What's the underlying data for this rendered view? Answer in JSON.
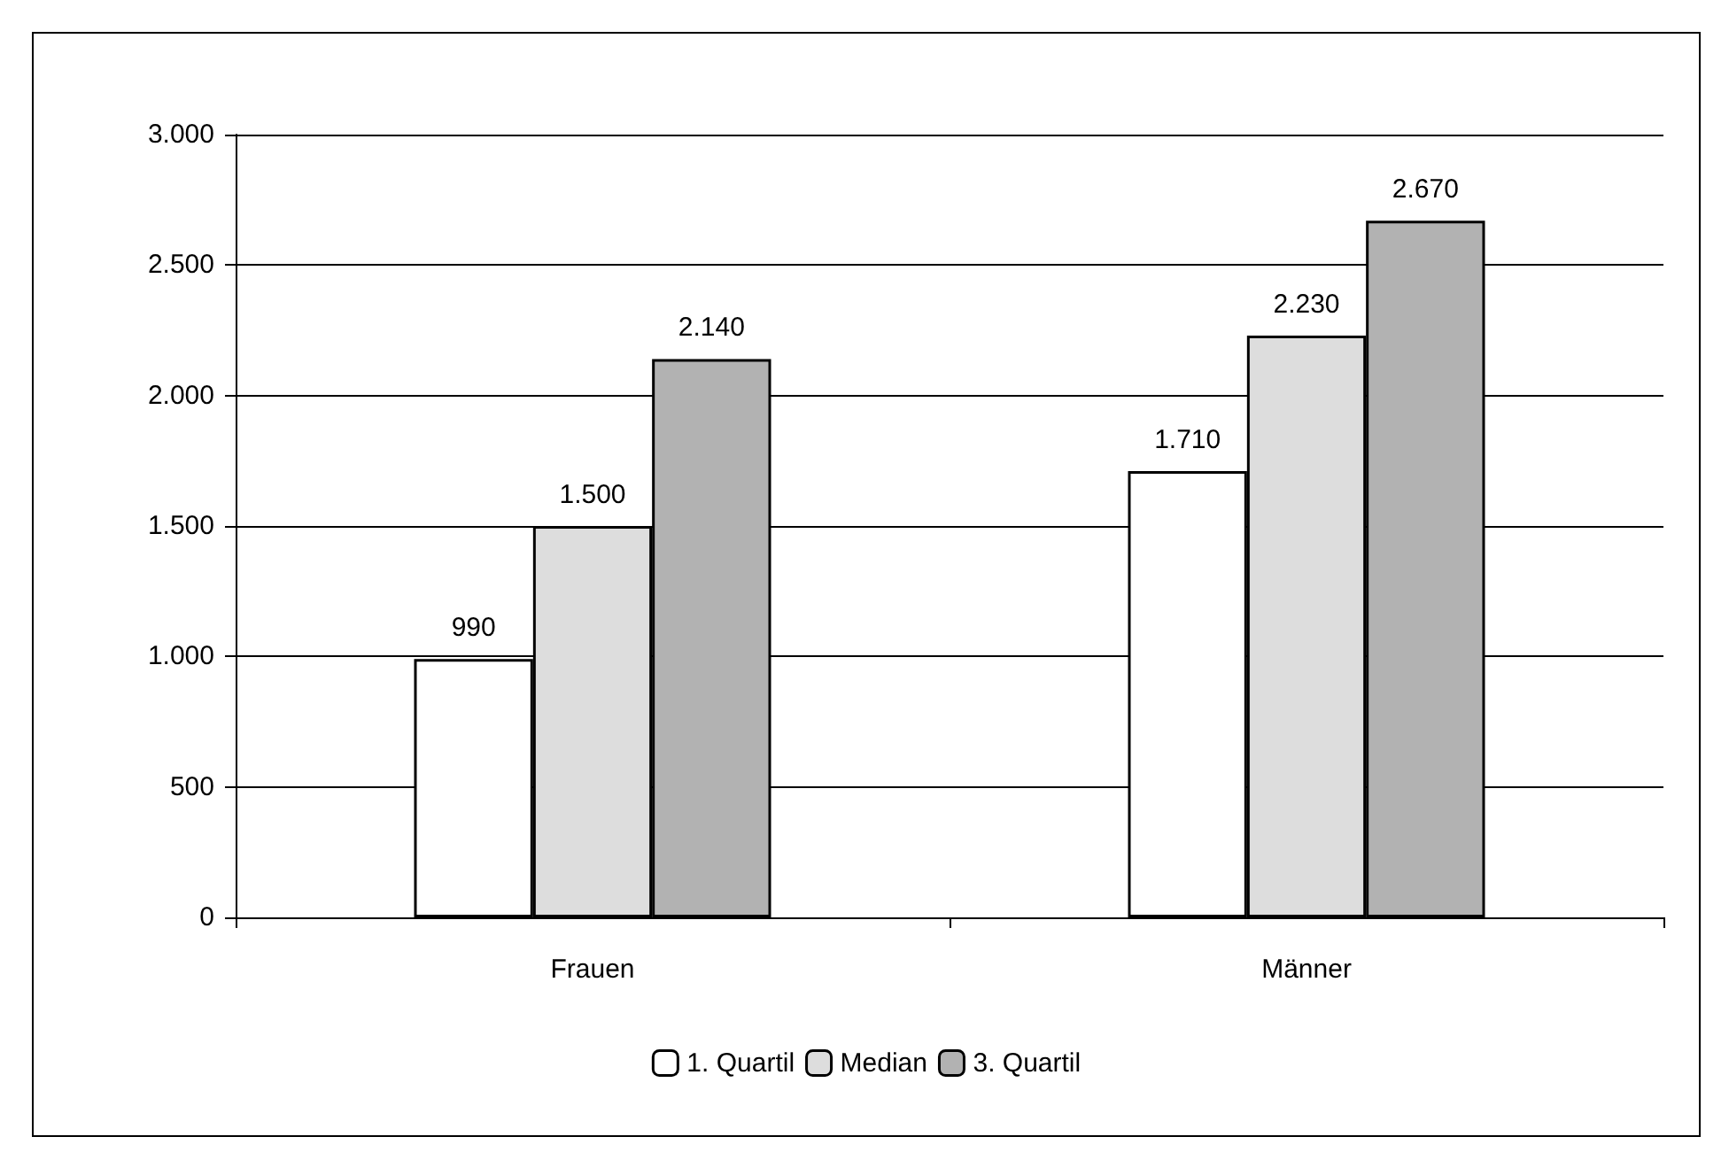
{
  "chart_data": {
    "type": "bar",
    "categories": [
      "Frauen",
      "Männer"
    ],
    "series": [
      {
        "name": "1. Quartil",
        "color": "#ffffff",
        "values": [
          990,
          1710
        ],
        "value_labels": [
          "990",
          "1.710"
        ]
      },
      {
        "name": "Median",
        "color": "#dddddd",
        "values": [
          1500,
          2230
        ],
        "value_labels": [
          "1.500",
          "2.230"
        ]
      },
      {
        "name": "3. Quartil",
        "color": "#b2b2b2",
        "values": [
          2140,
          2670
        ],
        "value_labels": [
          "2.140",
          "2.670"
        ]
      }
    ],
    "ylim": [
      0,
      3000
    ],
    "yticks": [
      {
        "value": 0,
        "label": "0"
      },
      {
        "value": 500,
        "label": "500"
      },
      {
        "value": 1000,
        "label": "1.000"
      },
      {
        "value": 1500,
        "label": "1.500"
      },
      {
        "value": 2000,
        "label": "2.000"
      },
      {
        "value": 2500,
        "label": "2.500"
      },
      {
        "value": 3000,
        "label": "3.000"
      }
    ],
    "grid": "y",
    "legend": "bottom"
  }
}
